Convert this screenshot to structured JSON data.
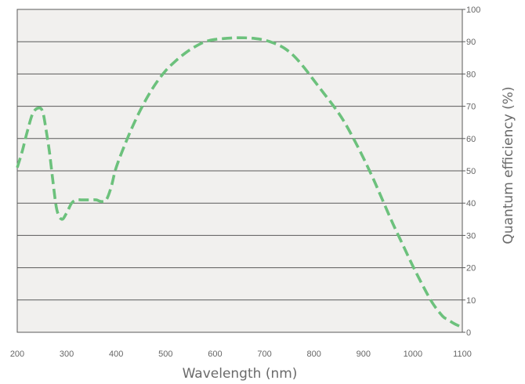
{
  "chart_data": {
    "type": "line",
    "title": "",
    "xlabel": "Wavelength (nm)",
    "ylabel": "Quantum efficiency (%)",
    "xlim": [
      200,
      1100
    ],
    "ylim": [
      0,
      100
    ],
    "x_ticks": [
      200,
      300,
      400,
      500,
      600,
      700,
      800,
      900,
      1000,
      1100
    ],
    "y_ticks": [
      0,
      10,
      20,
      30,
      40,
      50,
      60,
      70,
      80,
      90,
      100
    ],
    "y_axis_side": "right",
    "grid": "horizontal",
    "legend": "none",
    "series": [
      {
        "x": [
          200,
          210,
          220,
          232,
          245,
          252,
          258,
          265,
          272,
          280,
          290,
          300,
          310,
          320,
          330,
          340,
          350,
          360,
          370,
          380,
          390,
          400,
          420,
          440,
          460,
          480,
          500,
          520,
          540,
          560,
          580,
          600,
          620,
          640,
          660,
          680,
          700,
          720,
          740,
          760,
          780,
          800,
          820,
          840,
          860,
          880,
          900,
          920,
          940,
          960,
          980,
          1000,
          1020,
          1040,
          1060,
          1070,
          1080,
          1090,
          1100
        ],
        "y": [
          51,
          56,
          62,
          68,
          69.5,
          68,
          63,
          56,
          47,
          38,
          35,
          37,
          40,
          41,
          41,
          41,
          41,
          41,
          40.5,
          41,
          45,
          51,
          59,
          66,
          72,
          77,
          81,
          84,
          86.5,
          88.5,
          90,
          90.7,
          91,
          91.2,
          91.2,
          91,
          90.5,
          89.5,
          88,
          85.5,
          82,
          78,
          74,
          70,
          65.5,
          60,
          54,
          47.5,
          40.5,
          33.5,
          27,
          20.5,
          14.5,
          9,
          5,
          4,
          3,
          2.2,
          1.5
        ]
      }
    ],
    "colors": {
      "line": "#6cc17c",
      "plot_bg": "#f1f0ee",
      "grid": "#5a5a5a",
      "text": "#666666"
    }
  }
}
